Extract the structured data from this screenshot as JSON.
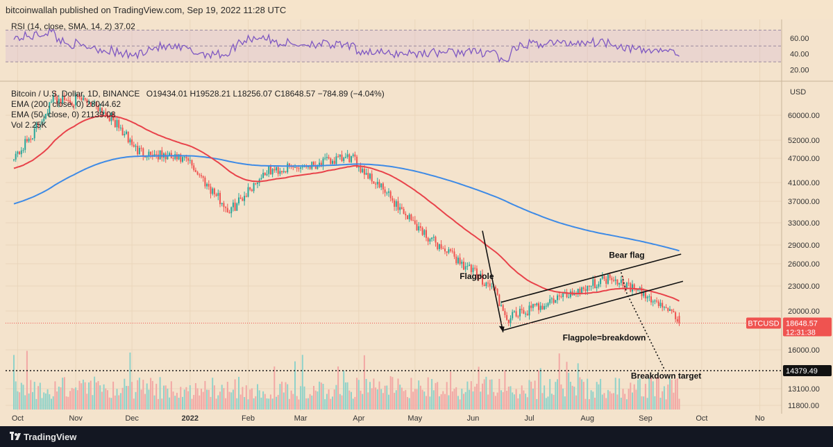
{
  "header": {
    "publisher": "bitcoinwallah published on TradingView.com, Sep 19, 2022 11:28 UTC"
  },
  "rsi": {
    "legend": "RSI (14, close, SMA, 14, 2)  37.02",
    "ticks": [
      "60.00",
      "40.00",
      "20.00"
    ],
    "ylim": [
      10,
      80
    ],
    "band": [
      30,
      70
    ],
    "mid": 50
  },
  "legend": {
    "symbol": "Bitcoin / U.S. Dollar, 1D, BINANCE",
    "ohlc": "O19434.01  H19528.21  L18256.07  C18648.57  −784.89 (−4.04%)",
    "ema200": "EMA (200, close, 0)  28044.62",
    "ema50": "EMA (50, close, 0)  21139.08",
    "vol": "Vol  2.25K"
  },
  "axis": {
    "currency": "USD",
    "price_ticks": [
      "60000.00",
      "52000.00",
      "47000.00",
      "41000.00",
      "37000.00",
      "33000.00",
      "29000.00",
      "26000.00",
      "23000.00",
      "20000.00",
      "16000.00",
      "13100.00",
      "11800.00"
    ],
    "months": [
      "Oct",
      "Nov",
      "Dec",
      "2022",
      "Feb",
      "Mar",
      "Apr",
      "May",
      "Jun",
      "Jul",
      "Aug",
      "Sep",
      "Oct",
      "No"
    ]
  },
  "price_tag": {
    "label": "BTCUSD",
    "price": "18648.57",
    "countdown": "12:31:38"
  },
  "target_tag": {
    "price": "14379.49"
  },
  "annotations": {
    "bear_flag": "Bear flag",
    "flagpole": "Flagpole",
    "flagpole_eq": "Flagpole=breakdown",
    "target": "Breakdown target"
  },
  "colors": {
    "background": "#f4e3cc",
    "up": "#26a69a",
    "down": "#ef5350",
    "ema200": "#3d8ae6",
    "ema50": "#e8424a",
    "rsi": "#7e57c2"
  },
  "footer": {
    "brand": "TradingView"
  },
  "chart_data": {
    "type": "candlestick",
    "symbol": "BTCUSD",
    "timeframe": "1D",
    "x_start": "2021-09-29",
    "x_end": "2022-09-19",
    "ohlc_samples": [
      [
        "2021-10-01",
        43800,
        48300,
        43300,
        48100
      ],
      [
        "2021-10-10",
        55000,
        56500,
        54000,
        54600
      ],
      [
        "2021-10-20",
        64000,
        67000,
        63500,
        65900
      ],
      [
        "2021-11-10",
        67000,
        69000,
        63000,
        64900
      ],
      [
        "2021-11-20",
        58000,
        59500,
        57000,
        59000
      ],
      [
        "2021-12-04",
        53000,
        53800,
        42000,
        49000
      ],
      [
        "2021-12-31",
        47100,
        48400,
        45700,
        46200
      ],
      [
        "2022-01-22",
        36400,
        36800,
        34100,
        35000
      ],
      [
        "2022-02-10",
        44000,
        45800,
        43200,
        43500
      ],
      [
        "2022-03-28",
        46800,
        48200,
        46600,
        47100
      ],
      [
        "2022-05-09",
        34000,
        34200,
        30100,
        30100
      ],
      [
        "2022-06-13",
        26600,
        26900,
        22600,
        22500
      ],
      [
        "2022-06-18",
        20400,
        20800,
        17600,
        19000
      ],
      [
        "2022-08-14",
        24400,
        25200,
        24100,
        24300
      ],
      [
        "2022-09-13",
        22400,
        22700,
        20100,
        20200
      ],
      [
        "2022-09-19",
        19434.01,
        19528.21,
        18256.07,
        18648.57
      ]
    ],
    "ema200_last": 28044.62,
    "ema50_last": 21139.08,
    "rsi_last": 37.02,
    "last_price": 18648.57,
    "breakdown_target": 14379.49,
    "volume_last": "2.25K"
  }
}
